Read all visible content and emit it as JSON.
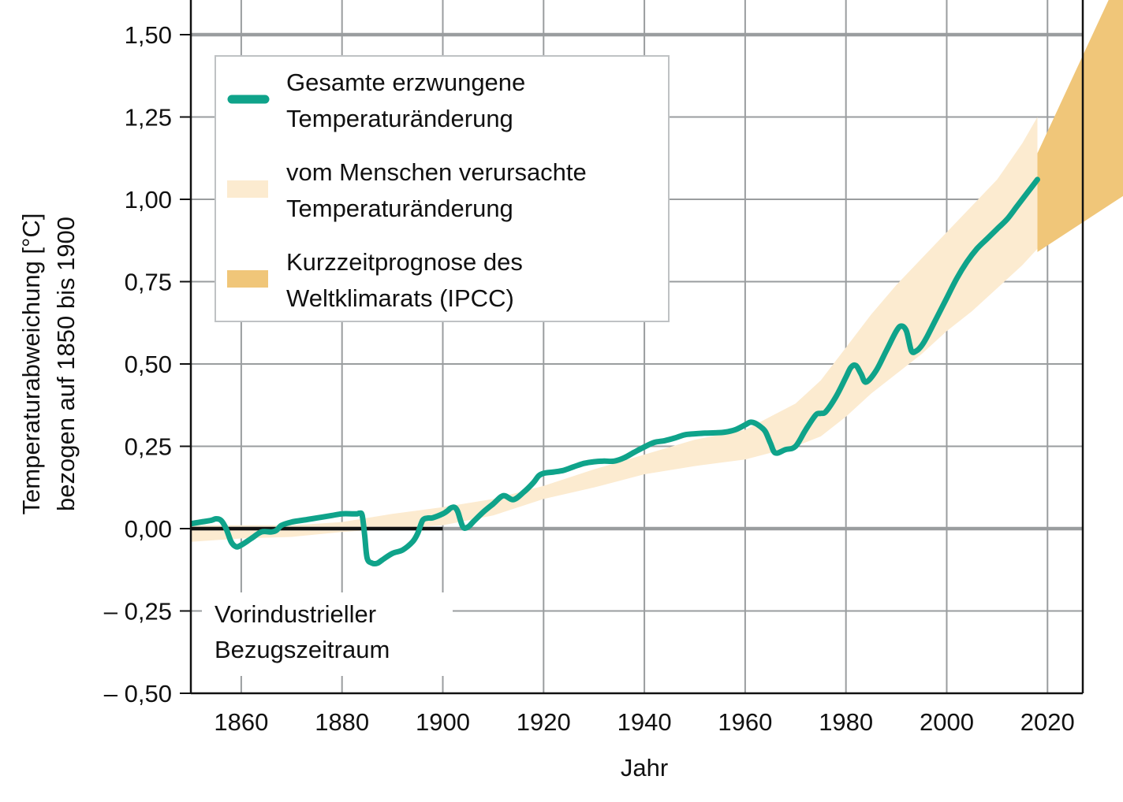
{
  "chart_data": {
    "type": "line",
    "xlabel": "Jahr",
    "ylabel_lines": [
      "Temperaturabweichung [°C]",
      "bezogen auf 1850 bis 1900"
    ],
    "xlim": [
      1850,
      2027
    ],
    "ylim": [
      -0.5,
      1.5
    ],
    "x_ticks": [
      1860,
      1880,
      1900,
      1920,
      1940,
      1960,
      1980,
      2000,
      2020
    ],
    "x_tick_labels": [
      "1860",
      "1880",
      "1900",
      "1920",
      "1940",
      "1960",
      "1980",
      "2000",
      "2020"
    ],
    "y_ticks": [
      1.5,
      1.25,
      1.0,
      0.75,
      0.5,
      0.25,
      0.0,
      -0.25,
      -0.5
    ],
    "y_tick_labels": [
      "1,50",
      "1,25",
      "1,00",
      "0,75",
      "0,50",
      "0,25",
      "0,00",
      "– 0,25",
      "– 0,50"
    ],
    "grid": true,
    "highlighted_y_lines": [
      0.0,
      1.5
    ],
    "legend_position": "top-left",
    "colors": {
      "total": "#0fa38a",
      "human_band": "#fcebd0",
      "forecast_band": "#f0c679",
      "grid": "#9a9d9f",
      "baseline": "#111111",
      "highlight_line": "#9a9d9f"
    },
    "legend": [
      {
        "key": "total",
        "lines": [
          "Gesamte erzwungene",
          "Temperaturänderung"
        ]
      },
      {
        "key": "human_band",
        "lines": [
          "vom Menschen verursachte",
          "Temperaturänderung"
        ]
      },
      {
        "key": "forecast_band",
        "lines": [
          "Kurzzeitprognose des",
          "Weltklimarats (IPCC)"
        ]
      }
    ],
    "baseline_period": {
      "x_start": 1850,
      "x_end": 1900,
      "y": 0.0
    },
    "annotation_lines": [
      "Vorindustrieller",
      "Bezugszeitraum"
    ],
    "series": [
      {
        "key": "total",
        "name": "Gesamte erzwungene Temperaturänderung",
        "x": [
          1850,
          1852,
          1854,
          1855,
          1856,
          1857,
          1858,
          1859,
          1860,
          1862,
          1864,
          1866,
          1867,
          1868,
          1870,
          1872,
          1874,
          1876,
          1878,
          1880,
          1882,
          1883,
          1883.5,
          1884,
          1884.5,
          1885,
          1886,
          1887,
          1888,
          1890,
          1892,
          1894,
          1895,
          1896,
          1897,
          1898,
          1900,
          1901,
          1901.5,
          1902,
          1902.5,
          1903,
          1904,
          1905,
          1906,
          1908,
          1910,
          1912,
          1914,
          1916,
          1918,
          1919,
          1920,
          1922,
          1924,
          1926,
          1928,
          1930,
          1932,
          1934,
          1936,
          1938,
          1940,
          1942,
          1944,
          1946,
          1948,
          1950,
          1952,
          1954,
          1956,
          1958,
          1960,
          1961,
          1962,
          1963,
          1964,
          1965,
          1966,
          1968,
          1970,
          1972,
          1974,
          1975,
          1976,
          1978,
          1980,
          1981,
          1982,
          1983,
          1984,
          1986,
          1988,
          1990,
          1991,
          1992,
          1993,
          1994,
          1995,
          1996,
          1998,
          2000,
          2002,
          2004,
          2006,
          2008,
          2010,
          2012,
          2014,
          2016,
          2018
        ],
        "y": [
          0.015,
          0.02,
          0.025,
          0.03,
          0.025,
          0.0,
          -0.04,
          -0.055,
          -0.05,
          -0.03,
          -0.01,
          -0.01,
          -0.005,
          0.01,
          0.02,
          0.025,
          0.03,
          0.035,
          0.04,
          0.045,
          0.045,
          0.045,
          0.047,
          0.04,
          -0.02,
          -0.09,
          -0.105,
          -0.105,
          -0.095,
          -0.075,
          -0.065,
          -0.04,
          -0.015,
          0.025,
          0.032,
          0.033,
          0.045,
          0.055,
          0.062,
          0.065,
          0.063,
          0.05,
          0.005,
          0.005,
          0.02,
          0.05,
          0.075,
          0.1,
          0.088,
          0.11,
          0.14,
          0.16,
          0.168,
          0.172,
          0.177,
          0.188,
          0.198,
          0.203,
          0.205,
          0.205,
          0.215,
          0.232,
          0.248,
          0.262,
          0.267,
          0.275,
          0.285,
          0.288,
          0.29,
          0.291,
          0.293,
          0.3,
          0.315,
          0.323,
          0.32,
          0.31,
          0.295,
          0.26,
          0.23,
          0.24,
          0.25,
          0.3,
          0.345,
          0.35,
          0.355,
          0.4,
          0.46,
          0.49,
          0.495,
          0.47,
          0.445,
          0.48,
          0.54,
          0.6,
          0.615,
          0.6,
          0.54,
          0.54,
          0.555,
          0.58,
          0.64,
          0.7,
          0.76,
          0.81,
          0.85,
          0.88,
          0.91,
          0.94,
          0.98,
          1.02,
          1.06
        ]
      },
      {
        "key": "human_band",
        "name": "vom Menschen verursachte Temperaturänderung",
        "x": [
          1850,
          1860,
          1870,
          1880,
          1890,
          1900,
          1910,
          1920,
          1930,
          1940,
          1950,
          1960,
          1965,
          1970,
          1975,
          1980,
          1985,
          1990,
          1995,
          2000,
          2005,
          2010,
          2015,
          2018
        ],
        "upper": [
          0.01,
          0.01,
          0.01,
          0.02,
          0.045,
          0.065,
          0.09,
          0.13,
          0.18,
          0.225,
          0.27,
          0.3,
          0.34,
          0.38,
          0.45,
          0.55,
          0.65,
          0.74,
          0.82,
          0.9,
          0.98,
          1.06,
          1.17,
          1.25
        ],
        "lower": [
          -0.04,
          -0.03,
          -0.025,
          -0.01,
          0.0,
          0.01,
          0.04,
          0.09,
          0.125,
          0.165,
          0.19,
          0.21,
          0.23,
          0.25,
          0.28,
          0.34,
          0.41,
          0.47,
          0.53,
          0.6,
          0.66,
          0.73,
          0.8,
          0.85
        ]
      },
      {
        "key": "forecast_band",
        "name": "Kurzzeitprognose des Weltklimarats (IPCC)",
        "x": [
          2018,
          2035
        ],
        "upper": [
          1.14,
          1.7
        ],
        "lower": [
          0.84,
          1.01
        ]
      }
    ]
  }
}
